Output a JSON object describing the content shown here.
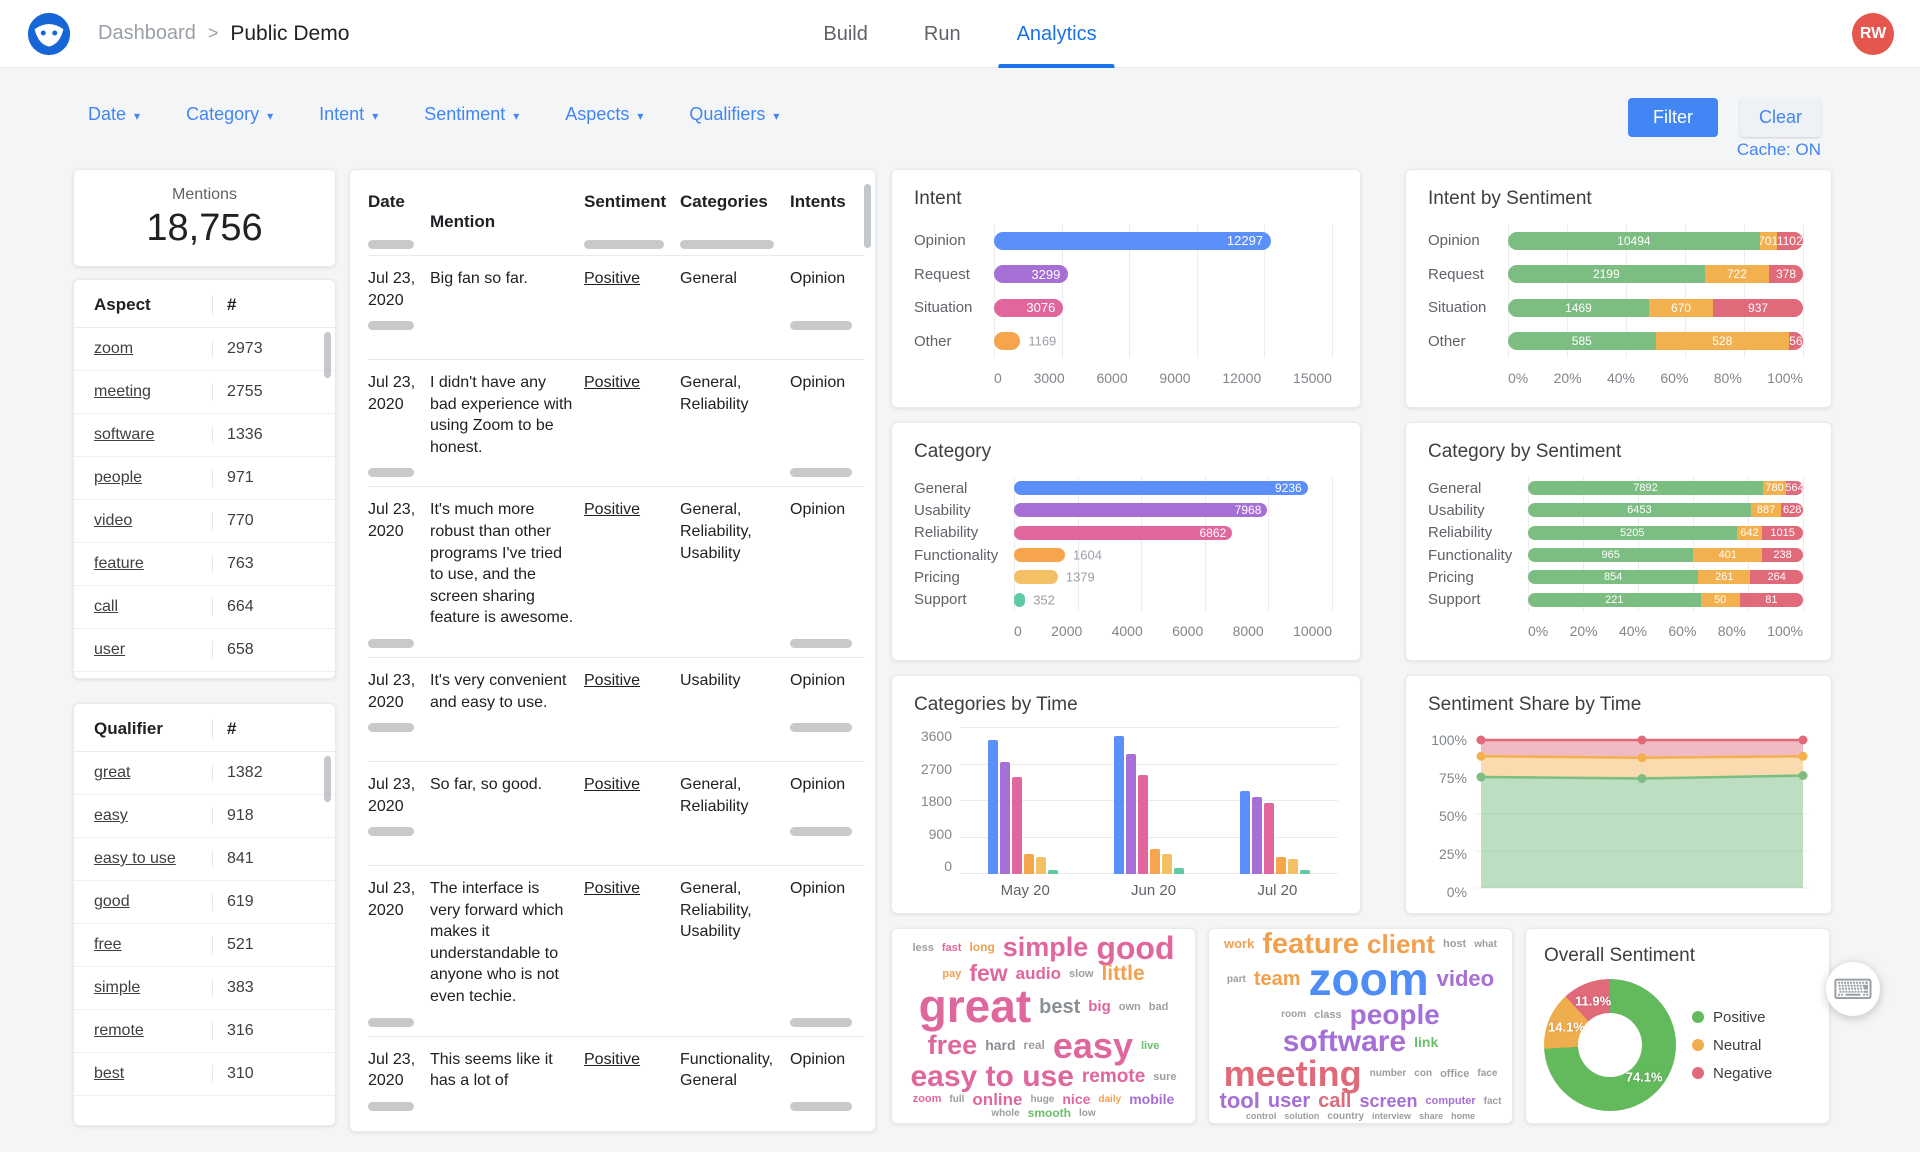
{
  "icons": {
    "breadcrumb_separator": ">",
    "caret_down": "▾",
    "keyboard": "⌨"
  },
  "header": {
    "breadcrumb": {
      "parent": "Dashboard",
      "current": "Public Demo"
    },
    "tabs": [
      {
        "label": "Build"
      },
      {
        "label": "Run"
      },
      {
        "label": "Analytics",
        "active": true
      }
    ],
    "avatar_initials": "RW"
  },
  "filters": {
    "dropdowns": [
      "Date",
      "Category",
      "Intent",
      "Sentiment",
      "Aspects",
      "Qualifiers"
    ],
    "filter_button": "Filter",
    "clear_button": "Clear",
    "cache_status": "Cache: ON"
  },
  "mentions_card": {
    "label": "Mentions",
    "value": "18,756"
  },
  "aspect_table": {
    "headers": [
      "Aspect",
      "#"
    ],
    "rows": [
      [
        "zoom",
        "2973"
      ],
      [
        "meeting",
        "2755"
      ],
      [
        "software",
        "1336"
      ],
      [
        "people",
        "971"
      ],
      [
        "video",
        "770"
      ],
      [
        "feature",
        "763"
      ],
      [
        "call",
        "664"
      ],
      [
        "user",
        "658"
      ]
    ]
  },
  "qualifier_table": {
    "headers": [
      "Qualifier",
      "#"
    ],
    "rows": [
      [
        "great",
        "1382"
      ],
      [
        "easy",
        "918"
      ],
      [
        "easy to use",
        "841"
      ],
      [
        "good",
        "619"
      ],
      [
        "free",
        "521"
      ],
      [
        "simple",
        "383"
      ],
      [
        "remote",
        "316"
      ],
      [
        "best",
        "310"
      ]
    ]
  },
  "mentions_table": {
    "headers": [
      "Date",
      "Mention",
      "Sentiment",
      "Categories",
      "Intents"
    ],
    "rows": [
      {
        "date": "Jul 23, 2020",
        "mention": "Big fan so far.",
        "sentiment": "Positive",
        "categories": "General",
        "intents": "Opinion"
      },
      {
        "date": "Jul 23, 2020",
        "mention": "I didn't have any bad experience with using Zoom to be honest.",
        "sentiment": "Positive",
        "categories": "General, Reliability",
        "intents": "Opinion"
      },
      {
        "date": "Jul 23, 2020",
        "mention": "It's much more robust than other programs I've tried to use, and the screen sharing feature is awesome.",
        "sentiment": "Positive",
        "categories": "General, Reliability, Usability",
        "intents": "Opinion"
      },
      {
        "date": "Jul 23, 2020",
        "mention": "It's very convenient and easy to use.",
        "sentiment": "Positive",
        "categories": "Usability",
        "intents": "Opinion"
      },
      {
        "date": "Jul 23, 2020",
        "mention": "So far, so good.",
        "sentiment": "Positive",
        "categories": "General, Reliability",
        "intents": "Opinion"
      },
      {
        "date": "Jul 23, 2020",
        "mention": "The interface is very forward which makes it understandable to anyone who is not even techie.",
        "sentiment": "Positive",
        "categories": "General, Reliability, Usability",
        "intents": "Opinion"
      },
      {
        "date": "Jul 23, 2020",
        "mention": "This seems like it has a lot of",
        "sentiment": "Positive",
        "categories": "Functionality, General",
        "intents": "Opinion"
      }
    ]
  },
  "chart_data": [
    {
      "type": "bar",
      "orientation": "horizontal",
      "title": "Intent",
      "categories": [
        "Opinion",
        "Request",
        "Situation",
        "Other"
      ],
      "values": [
        12297,
        3299,
        3076,
        1169
      ],
      "colors": [
        "#5b8ff9",
        "#a66fd5",
        "#e2669e",
        "#f6a54c"
      ],
      "xlim": [
        0,
        15000
      ],
      "xticks": [
        "0",
        "3000",
        "6000",
        "9000",
        "12000",
        "15000"
      ]
    },
    {
      "type": "bar",
      "orientation": "horizontal",
      "stacked": true,
      "percent": true,
      "title": "Intent by Sentiment",
      "categories": [
        "Opinion",
        "Request",
        "Situation",
        "Other"
      ],
      "series": [
        {
          "name": "Positive",
          "color": "#7cbe81",
          "values": [
            10494,
            2199,
            1469,
            585
          ]
        },
        {
          "name": "Neutral",
          "color": "#f2b04e",
          "values": [
            701,
            722,
            670,
            528
          ]
        },
        {
          "name": "Negative",
          "color": "#e0697a",
          "values": [
            1102,
            378,
            937,
            56
          ]
        }
      ],
      "xticks": [
        "0%",
        "20%",
        "40%",
        "60%",
        "80%",
        "100%"
      ]
    },
    {
      "type": "bar",
      "orientation": "horizontal",
      "title": "Category",
      "categories": [
        "General",
        "Usability",
        "Reliability",
        "Functionality",
        "Pricing",
        "Support"
      ],
      "values": [
        9236,
        7968,
        6862,
        1604,
        1379,
        352
      ],
      "colors": [
        "#5b8ff9",
        "#a66fd5",
        "#e2669e",
        "#f6a54c",
        "#f3c163",
        "#5fc9a2"
      ],
      "xlim": [
        0,
        10000
      ],
      "xticks": [
        "0",
        "2000",
        "4000",
        "6000",
        "8000",
        "10000"
      ]
    },
    {
      "type": "bar",
      "orientation": "horizontal",
      "stacked": true,
      "percent": true,
      "title": "Category by Sentiment",
      "categories": [
        "General",
        "Usability",
        "Reliability",
        "Functionality",
        "Pricing",
        "Support"
      ],
      "series": [
        {
          "name": "Positive",
          "color": "#7cbe81",
          "values": [
            7892,
            6453,
            5205,
            965,
            854,
            221
          ]
        },
        {
          "name": "Neutral",
          "color": "#f2b04e",
          "values": [
            780,
            887,
            642,
            401,
            261,
            50
          ]
        },
        {
          "name": "Negative",
          "color": "#e0697a",
          "values": [
            564,
            628,
            1015,
            238,
            264,
            81
          ]
        }
      ],
      "xticks": [
        "0%",
        "20%",
        "40%",
        "60%",
        "80%",
        "100%"
      ]
    },
    {
      "type": "bar",
      "orientation": "vertical",
      "grouped": true,
      "title": "Categories by Time",
      "categories": [
        "May 20",
        "Jun 20",
        "Jul 20"
      ],
      "series": [
        {
          "name": "General",
          "color": "#5b8ff9",
          "values": [
            3300,
            3400,
            2050
          ]
        },
        {
          "name": "Usability",
          "color": "#a66fd5",
          "values": [
            2750,
            2950,
            1900
          ]
        },
        {
          "name": "Reliability",
          "color": "#e2669e",
          "values": [
            2400,
            2450,
            1750
          ]
        },
        {
          "name": "Functionality",
          "color": "#f6a54c",
          "values": [
            500,
            620,
            430
          ]
        },
        {
          "name": "Pricing",
          "color": "#f3c163",
          "values": [
            430,
            500,
            380
          ]
        },
        {
          "name": "Support",
          "color": "#5fc9a2",
          "values": [
            110,
            150,
            90
          ]
        }
      ],
      "ylim": [
        0,
        3600
      ],
      "yticks": [
        "0",
        "900",
        "1800",
        "2700",
        "3600"
      ]
    },
    {
      "type": "area",
      "percent": true,
      "title": "Sentiment Share by Time",
      "x": [
        "May 20",
        "Jun 20",
        "Jul 20"
      ],
      "series": [
        {
          "name": "Positive",
          "color": "#7cbe81",
          "values": [
            75,
            74,
            76
          ]
        },
        {
          "name": "Neutral",
          "color": "#f2b04e",
          "values": [
            14,
            14,
            13
          ]
        },
        {
          "name": "Negative",
          "color": "#e0697a",
          "values": [
            11,
            12,
            11
          ]
        }
      ],
      "yticks": [
        "100%",
        "75%",
        "50%",
        "25%",
        "0%"
      ]
    },
    {
      "type": "wordcloud",
      "name": "qualifier-cloud",
      "words": [
        {
          "text": "less",
          "size": 11,
          "color": "#9e9e9e"
        },
        {
          "text": "fast",
          "size": 11,
          "color": "#e0679e"
        },
        {
          "text": "long",
          "size": 12,
          "color": "#f2a04e"
        },
        {
          "text": "simple",
          "size": 27,
          "color": "#e0679e"
        },
        {
          "text": "good",
          "size": 32,
          "color": "#e0679e"
        },
        {
          "text": "pay",
          "size": 11,
          "color": "#f2a04e"
        },
        {
          "text": "few",
          "size": 23,
          "color": "#e0679e"
        },
        {
          "text": "audio",
          "size": 17,
          "color": "#e0679e"
        },
        {
          "text": "slow",
          "size": 11,
          "color": "#9e9e9e"
        },
        {
          "text": "little",
          "size": 21,
          "color": "#f2a04e"
        },
        {
          "text": "great",
          "size": 46,
          "color": "#e0679e"
        },
        {
          "text": "best",
          "size": 20,
          "color": "#8a8f94"
        },
        {
          "text": "big",
          "size": 15,
          "color": "#e0679e"
        },
        {
          "text": "own",
          "size": 11,
          "color": "#9e9e9e"
        },
        {
          "text": "bad",
          "size": 11,
          "color": "#9e9e9e"
        },
        {
          "text": "free",
          "size": 27,
          "color": "#e0679e"
        },
        {
          "text": "hard",
          "size": 14,
          "color": "#8a8f94"
        },
        {
          "text": "real",
          "size": 12,
          "color": "#9e9e9e"
        },
        {
          "text": "easy",
          "size": 36,
          "color": "#e0679e"
        },
        {
          "text": "live",
          "size": 11,
          "color": "#6abf69"
        },
        {
          "text": "easy to use",
          "size": 30,
          "color": "#e0679e"
        },
        {
          "text": "remote",
          "size": 19,
          "color": "#e0679e"
        },
        {
          "text": "sure",
          "size": 11,
          "color": "#9e9e9e"
        },
        {
          "text": "zoom",
          "size": 11,
          "color": "#e0679e"
        },
        {
          "text": "full",
          "size": 10,
          "color": "#9e9e9e"
        },
        {
          "text": "online",
          "size": 17,
          "color": "#e0679e"
        },
        {
          "text": "huge",
          "size": 10,
          "color": "#9e9e9e"
        },
        {
          "text": "nice",
          "size": 14,
          "color": "#e0679e"
        },
        {
          "text": "daily",
          "size": 10,
          "color": "#f2a04e"
        },
        {
          "text": "mobile",
          "size": 14,
          "color": "#a66fd5"
        },
        {
          "text": "whole",
          "size": 10,
          "color": "#9e9e9e"
        },
        {
          "text": "smooth",
          "size": 12,
          "color": "#6abf69"
        },
        {
          "text": "low",
          "size": 10,
          "color": "#9e9e9e"
        }
      ]
    },
    {
      "type": "wordcloud",
      "name": "aspect-cloud",
      "words": [
        {
          "text": "work",
          "size": 13,
          "color": "#f2a04e"
        },
        {
          "text": "feature",
          "size": 29,
          "color": "#f2a04e"
        },
        {
          "text": "client",
          "size": 26,
          "color": "#f2a04e"
        },
        {
          "text": "host",
          "size": 11,
          "color": "#9e9e9e"
        },
        {
          "text": "what",
          "size": 10,
          "color": "#9e9e9e"
        },
        {
          "text": "part",
          "size": 10,
          "color": "#9e9e9e"
        },
        {
          "text": "team",
          "size": 20,
          "color": "#f2a04e"
        },
        {
          "text": "zoom",
          "size": 46,
          "color": "#4e8df5"
        },
        {
          "text": "video",
          "size": 22,
          "color": "#a66fd5"
        },
        {
          "text": "room",
          "size": 10,
          "color": "#9e9e9e"
        },
        {
          "text": "class",
          "size": 11,
          "color": "#9e9e9e"
        },
        {
          "text": "people",
          "size": 28,
          "color": "#a66fd5"
        },
        {
          "text": "software",
          "size": 30,
          "color": "#a66fd5"
        },
        {
          "text": "link",
          "size": 14,
          "color": "#6abf69"
        },
        {
          "text": "meeting",
          "size": 36,
          "color": "#e0697a"
        },
        {
          "text": "number",
          "size": 10,
          "color": "#9e9e9e"
        },
        {
          "text": "con",
          "size": 10,
          "color": "#9e9e9e"
        },
        {
          "text": "office",
          "size": 11,
          "color": "#9e9e9e"
        },
        {
          "text": "face",
          "size": 10,
          "color": "#9e9e9e"
        },
        {
          "text": "tool",
          "size": 22,
          "color": "#a66fd5"
        },
        {
          "text": "user",
          "size": 20,
          "color": "#a66fd5"
        },
        {
          "text": "call",
          "size": 20,
          "color": "#e0697a"
        },
        {
          "text": "screen",
          "size": 18,
          "color": "#a66fd5"
        },
        {
          "text": "computer",
          "size": 11,
          "color": "#a66fd5"
        },
        {
          "text": "fact",
          "size": 10,
          "color": "#9e9e9e"
        },
        {
          "text": "control",
          "size": 9,
          "color": "#9e9e9e"
        },
        {
          "text": "solution",
          "size": 9,
          "color": "#9e9e9e"
        },
        {
          "text": "country",
          "size": 10,
          "color": "#9e9e9e"
        },
        {
          "text": "interview",
          "size": 9,
          "color": "#9e9e9e"
        },
        {
          "text": "share",
          "size": 9,
          "color": "#9e9e9e"
        },
        {
          "text": "home",
          "size": 9,
          "color": "#9e9e9e"
        }
      ]
    },
    {
      "type": "pie",
      "donut": true,
      "title": "Overall Sentiment",
      "slices": [
        {
          "label": "Positive",
          "value": 74.1,
          "color": "#62ba5c"
        },
        {
          "label": "Neutral",
          "value": 14.1,
          "color": "#f0ad4e"
        },
        {
          "label": "Negative",
          "value": 11.9,
          "color": "#e0697a"
        }
      ],
      "legend_position": "right"
    }
  ]
}
